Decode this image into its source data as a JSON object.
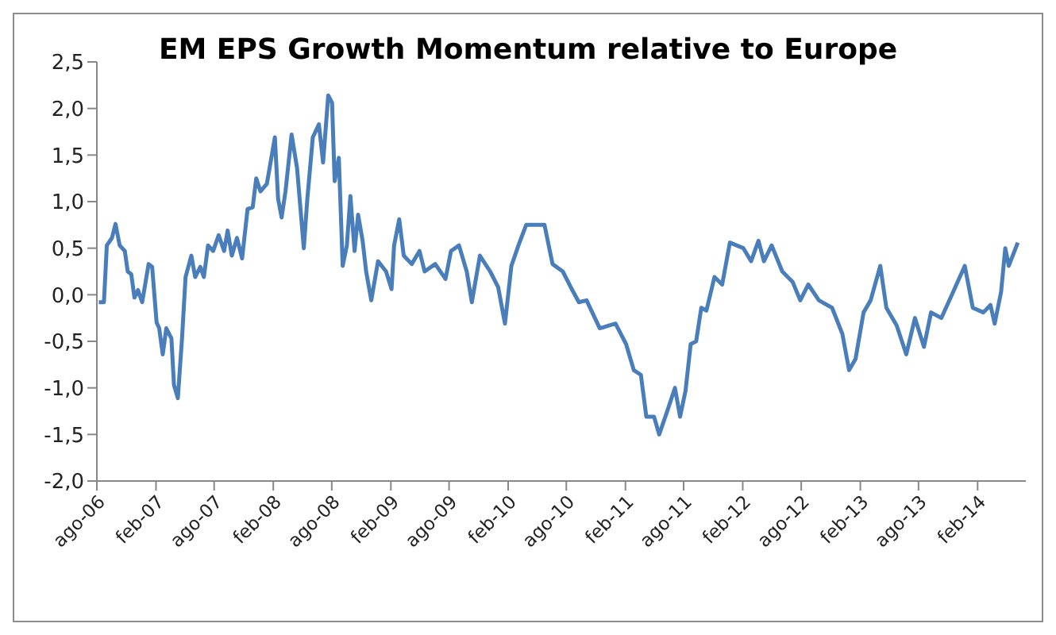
{
  "chart_data": {
    "type": "line",
    "title": "EM EPS Growth Momentum relative to Europe",
    "x": [
      "2006-08-07",
      "2006-08-23",
      "2006-09-01",
      "2006-09-17",
      "2006-09-28",
      "2006-10-11",
      "2006-10-27",
      "2006-11-05",
      "2006-11-16",
      "2006-11-26",
      "2006-12-07",
      "2006-12-20",
      "2007-01-09",
      "2007-01-20",
      "2007-02-03",
      "2007-02-11",
      "2007-02-22",
      "2007-03-05",
      "2007-03-21",
      "2007-03-29",
      "2007-04-10",
      "2007-04-23",
      "2007-05-04",
      "2007-05-22",
      "2007-06-03",
      "2007-06-19",
      "2007-06-30",
      "2007-07-13",
      "2007-07-29",
      "2007-08-15",
      "2007-09-01",
      "2007-09-12",
      "2007-09-25",
      "2007-10-11",
      "2007-10-27",
      "2007-11-13",
      "2007-11-29",
      "2007-12-10",
      "2007-12-23",
      "2008-01-12",
      "2008-02-06",
      "2008-02-16",
      "2008-02-27",
      "2008-03-10",
      "2008-03-29",
      "2008-04-15",
      "2008-05-06",
      "2008-05-17",
      "2008-06-03",
      "2008-06-22",
      "2008-07-05",
      "2008-07-21",
      "2008-08-02",
      "2008-08-10",
      "2008-08-23",
      "2008-09-04",
      "2008-09-17",
      "2008-09-28",
      "2008-10-11",
      "2008-10-22",
      "2008-11-05",
      "2008-11-16",
      "2008-12-02",
      "2008-12-23",
      "2009-01-17",
      "2009-02-03",
      "2009-02-11",
      "2009-02-27",
      "2009-03-13",
      "2009-04-07",
      "2009-05-01",
      "2009-05-17",
      "2009-06-19",
      "2009-07-21",
      "2009-08-07",
      "2009-09-01",
      "2009-09-25",
      "2009-10-11",
      "2009-11-05",
      "2009-12-07",
      "2010-01-01",
      "2010-01-22",
      "2010-02-11",
      "2010-03-05",
      "2010-03-29",
      "2010-05-01",
      "2010-05-25",
      "2010-06-19",
      "2010-07-21",
      "2010-08-15",
      "2010-09-09",
      "2010-10-03",
      "2010-11-13",
      "2011-01-01",
      "2011-02-03",
      "2011-02-27",
      "2011-03-21",
      "2011-04-07",
      "2011-05-01",
      "2011-05-17",
      "2011-06-11",
      "2011-07-05",
      "2011-07-21",
      "2011-08-07",
      "2011-08-23",
      "2011-09-09",
      "2011-09-25",
      "2011-10-11",
      "2011-11-05",
      "2011-11-29",
      "2011-12-23",
      "2012-02-03",
      "2012-02-27",
      "2012-03-21",
      "2012-04-07",
      "2012-05-01",
      "2012-06-03",
      "2012-07-05",
      "2012-07-29",
      "2012-08-23",
      "2012-09-25",
      "2012-11-05",
      "2012-12-07",
      "2012-12-28",
      "2013-01-17",
      "2013-02-11",
      "2013-03-05",
      "2013-04-04",
      "2013-04-23",
      "2013-05-25",
      "2013-06-24",
      "2013-07-21",
      "2013-08-18",
      "2013-09-09",
      "2013-10-11",
      "2013-11-13",
      "2013-12-23",
      "2014-01-17",
      "2014-02-19",
      "2014-03-13",
      "2014-03-26",
      "2014-04-15",
      "2014-04-28",
      "2014-05-09",
      "2014-06-06"
    ],
    "series": [
      {
        "color": "#4a7ebb",
        "values": [
          -0.08,
          -0.08,
          0.53,
          0.61,
          0.76,
          0.53,
          0.47,
          0.25,
          0.22,
          -0.03,
          0.05,
          -0.08,
          0.33,
          0.3,
          -0.3,
          -0.36,
          -0.64,
          -0.36,
          -0.47,
          -0.97,
          -1.11,
          -0.47,
          0.19,
          0.42,
          0.19,
          0.3,
          0.19,
          0.53,
          0.47,
          0.64,
          0.47,
          0.69,
          0.42,
          0.61,
          0.39,
          0.92,
          0.94,
          1.25,
          1.11,
          1.19,
          1.69,
          1.03,
          0.83,
          1.11,
          1.72,
          1.36,
          0.5,
          1.03,
          1.69,
          1.83,
          1.42,
          2.14,
          2.06,
          1.22,
          1.47,
          0.31,
          0.53,
          1.06,
          0.47,
          0.86,
          0.58,
          0.25,
          -0.06,
          0.36,
          0.25,
          0.06,
          0.53,
          0.81,
          0.42,
          0.33,
          0.47,
          0.25,
          0.33,
          0.17,
          0.47,
          0.53,
          0.25,
          -0.08,
          0.42,
          0.25,
          0.08,
          -0.31,
          0.31,
          0.53,
          0.75,
          0.75,
          0.75,
          0.33,
          0.25,
          0.08,
          -0.08,
          -0.06,
          -0.36,
          -0.31,
          -0.53,
          -0.81,
          -0.86,
          -1.31,
          -1.31,
          -1.5,
          -1.25,
          -1.0,
          -1.31,
          -1.03,
          -0.53,
          -0.5,
          -0.14,
          -0.17,
          0.19,
          0.11,
          0.56,
          0.5,
          0.36,
          0.58,
          0.36,
          0.53,
          0.25,
          0.14,
          -0.06,
          0.11,
          -0.06,
          -0.14,
          -0.42,
          -0.81,
          -0.69,
          -0.19,
          -0.06,
          0.31,
          -0.14,
          -0.33,
          -0.64,
          -0.25,
          -0.56,
          -0.19,
          -0.25,
          0.0,
          0.31,
          -0.14,
          -0.19,
          -0.11,
          -0.31,
          0.03,
          0.5,
          0.31,
          0.56
        ]
      }
    ],
    "xlim": [
      "2006-08-01",
      "2014-07-01"
    ],
    "xticks": [
      {
        "value": "2006-08-01",
        "label": "ago-06"
      },
      {
        "value": "2007-02-01",
        "label": "feb-07"
      },
      {
        "value": "2007-08-01",
        "label": "ago-07"
      },
      {
        "value": "2008-02-01",
        "label": "feb-08"
      },
      {
        "value": "2008-08-01",
        "label": "ago-08"
      },
      {
        "value": "2009-02-01",
        "label": "feb-09"
      },
      {
        "value": "2009-08-01",
        "label": "ago-09"
      },
      {
        "value": "2010-02-01",
        "label": "feb-10"
      },
      {
        "value": "2010-08-01",
        "label": "ago-10"
      },
      {
        "value": "2011-02-01",
        "label": "feb-11"
      },
      {
        "value": "2011-08-01",
        "label": "ago-11"
      },
      {
        "value": "2012-02-01",
        "label": "feb-12"
      },
      {
        "value": "2012-08-01",
        "label": "ago-12"
      },
      {
        "value": "2013-02-01",
        "label": "feb-13"
      },
      {
        "value": "2013-08-01",
        "label": "ago-13"
      },
      {
        "value": "2014-02-01",
        "label": "feb-14"
      }
    ],
    "ylim": [
      -2.0,
      2.5
    ],
    "yticks": [
      {
        "value": -2.0,
        "label": "-2,0"
      },
      {
        "value": -1.5,
        "label": "-1,5"
      },
      {
        "value": -1.0,
        "label": "-1,0"
      },
      {
        "value": -0.5,
        "label": "-0,5"
      },
      {
        "value": 0.0,
        "label": "0,0"
      },
      {
        "value": 0.5,
        "label": "0,5"
      },
      {
        "value": 1.0,
        "label": "1,0"
      },
      {
        "value": 1.5,
        "label": "1,5"
      },
      {
        "value": 2.0,
        "label": "2,0"
      },
      {
        "value": 2.5,
        "label": "2,5"
      }
    ],
    "grid": false,
    "legend": false,
    "marker": "none",
    "line_style": "solid"
  }
}
